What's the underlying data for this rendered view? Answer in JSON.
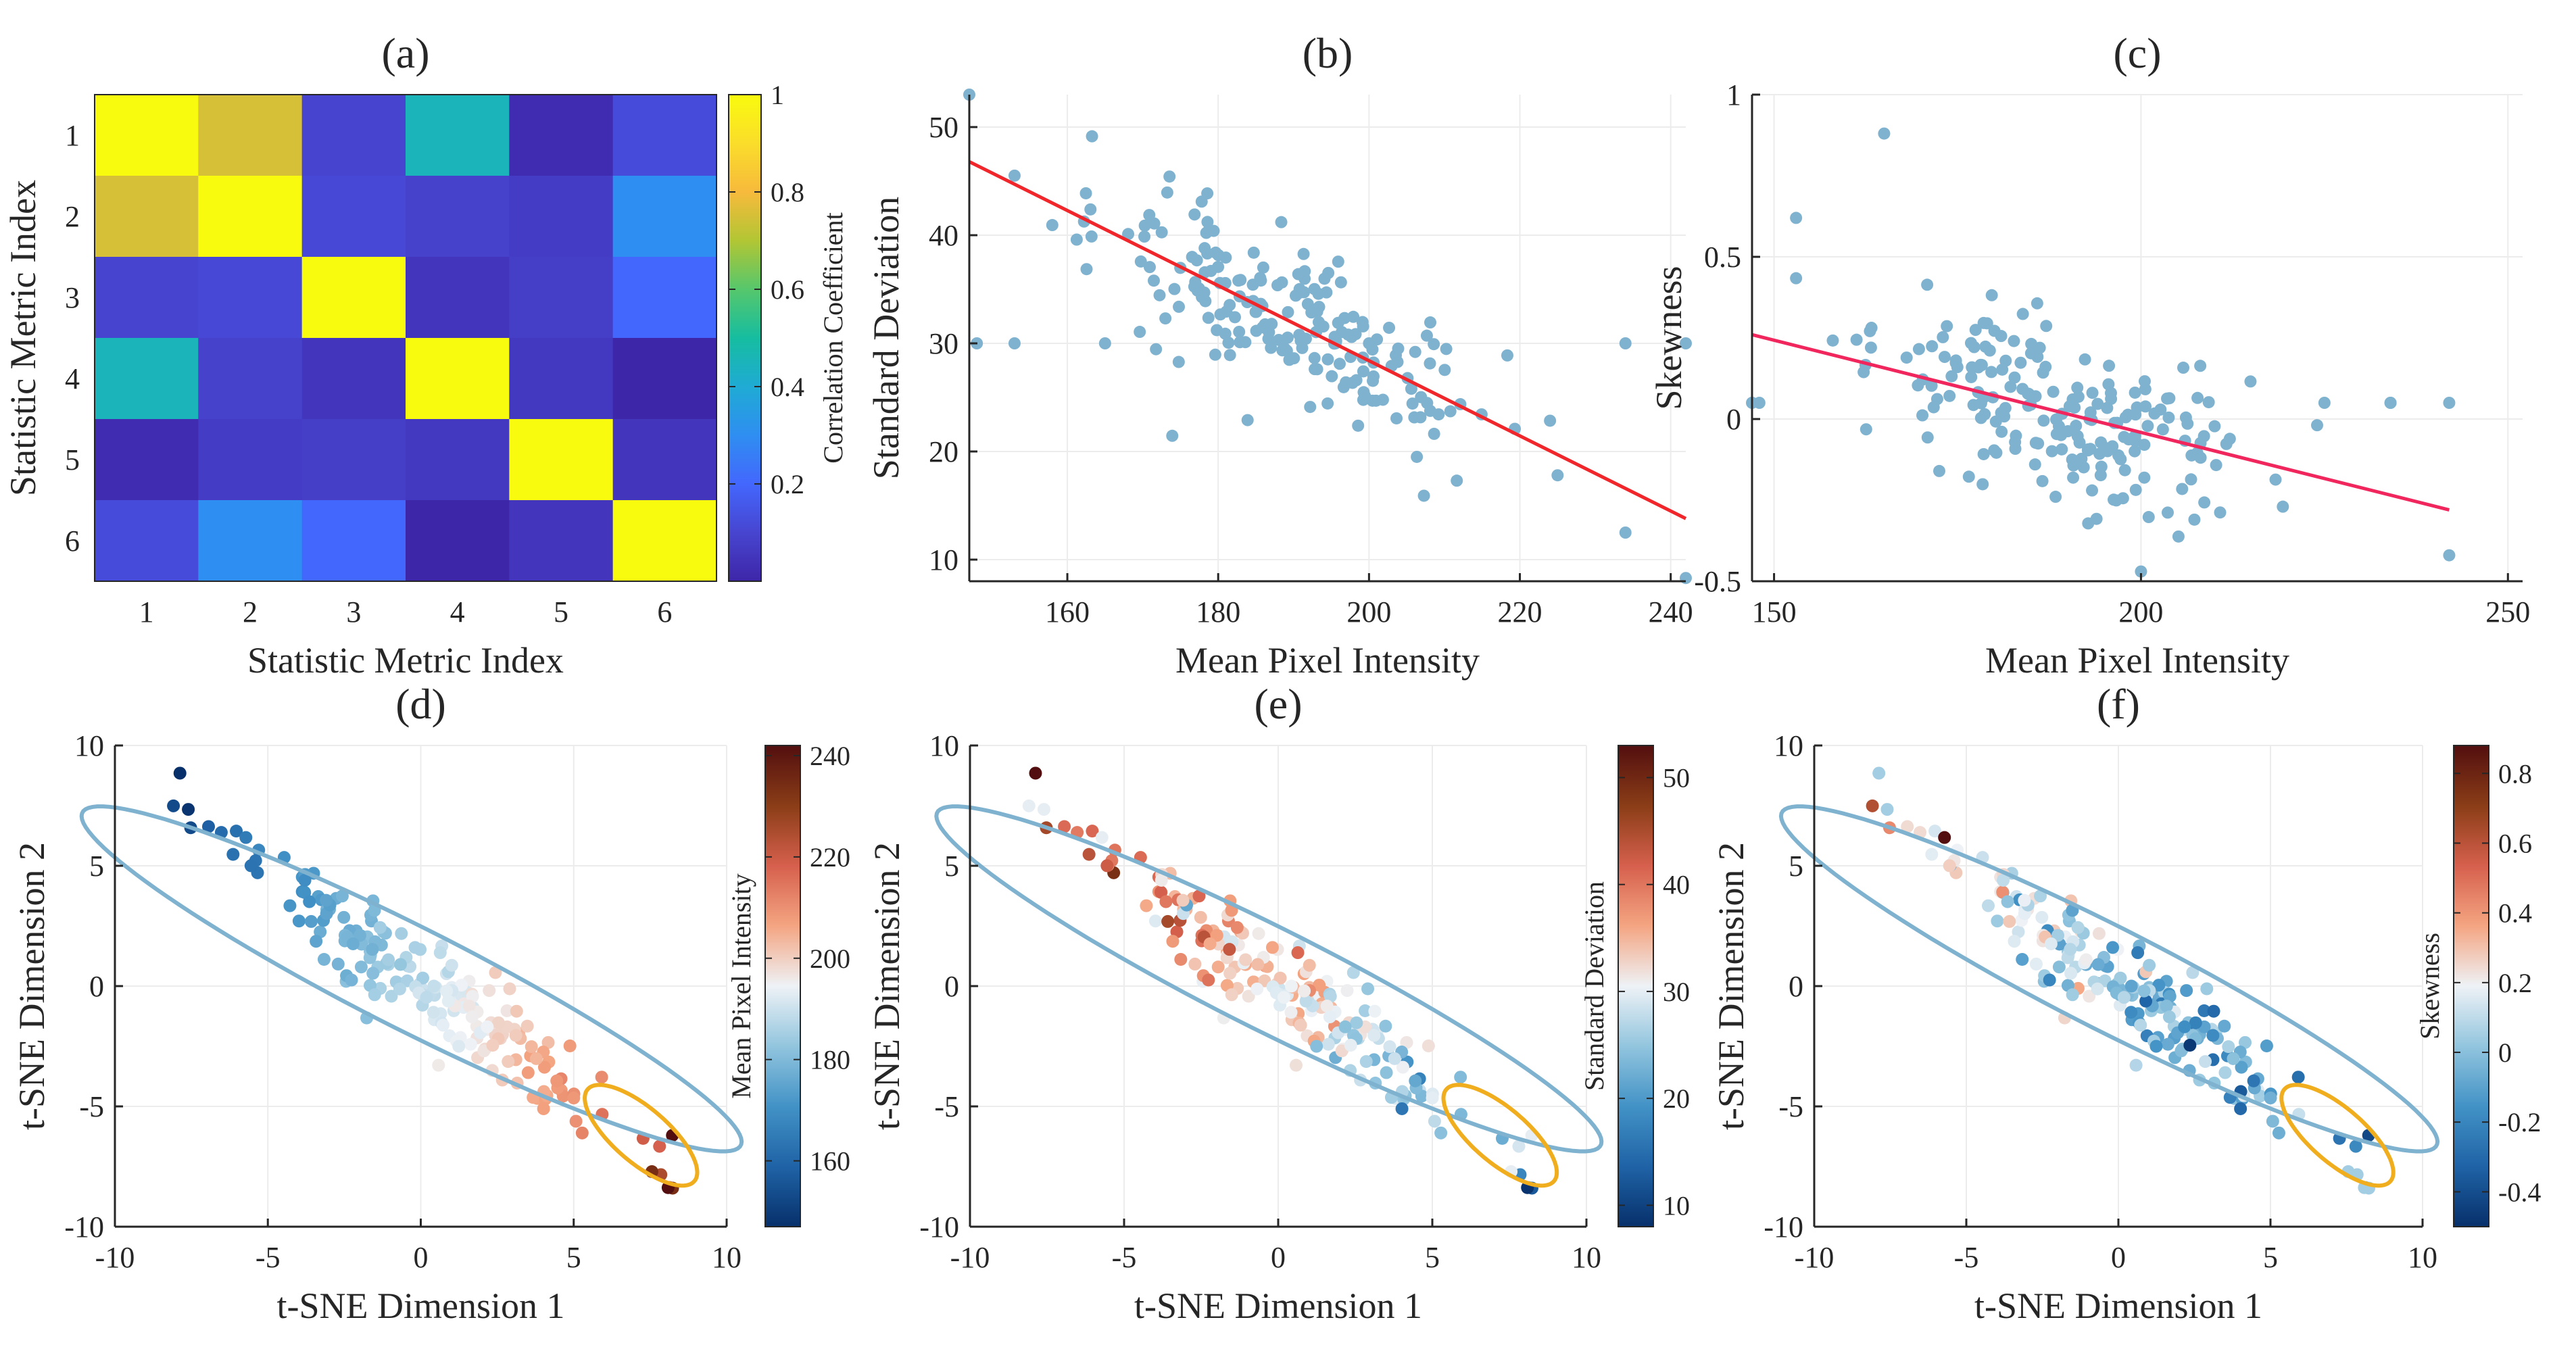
{
  "chart_data": [
    {
      "id": "a",
      "type": "heatmap",
      "title": "(a)",
      "xlabel": "Statistic Metric Index",
      "ylabel": "Statistic Metric Index",
      "categories": [
        "1",
        "2",
        "3",
        "4",
        "5",
        "6"
      ],
      "matrix": [
        [
          1.0,
          0.75,
          0.1,
          0.45,
          0.02,
          0.12
        ],
        [
          0.75,
          1.0,
          0.11,
          0.09,
          0.07,
          0.3
        ],
        [
          0.1,
          0.11,
          1.0,
          0.05,
          0.08,
          0.2
        ],
        [
          0.45,
          0.09,
          0.05,
          1.0,
          0.06,
          0.0
        ],
        [
          0.02,
          0.07,
          0.08,
          0.06,
          1.0,
          0.05
        ],
        [
          0.12,
          0.3,
          0.2,
          0.0,
          0.05,
          1.0
        ]
      ],
      "colorbar": {
        "label": "Correlation Coefficient",
        "range": [
          0,
          1
        ],
        "ticks": [
          "0.2",
          "0.4",
          "0.6",
          "0.8",
          "1"
        ]
      }
    },
    {
      "id": "b",
      "type": "scatter",
      "title": "(b)",
      "xlabel": "Mean Pixel Intensity",
      "ylabel": "Standard Deviation",
      "xlim": [
        147,
        242
      ],
      "ylim": [
        8,
        53
      ],
      "xticks": [
        "160",
        "180",
        "200",
        "220",
        "240"
      ],
      "yticks": [
        "10",
        "20",
        "30",
        "40",
        "50"
      ],
      "fit_line": {
        "x": [
          147,
          242
        ],
        "y": [
          46.8,
          13.8
        ]
      },
      "outliers": [
        [
          147,
          53
        ],
        [
          234,
          12.5
        ],
        [
          242,
          8.3
        ],
        [
          225,
          17.8
        ]
      ],
      "point_color": "#7fb2cf",
      "line_color": "#f0262b"
    },
    {
      "id": "c",
      "type": "scatter",
      "title": "(c)",
      "xlabel": "Mean Pixel Intensity",
      "ylabel": "Skewness",
      "xlim": [
        147,
        252
      ],
      "ylim": [
        -0.5,
        1
      ],
      "xticks": [
        "150",
        "200",
        "250"
      ],
      "yticks": [
        "-0.5",
        "0",
        "0.5",
        "1"
      ],
      "fit_line": {
        "x": [
          147,
          242
        ],
        "y": [
          0.26,
          -0.28
        ]
      },
      "outliers": [
        [
          165,
          0.88
        ],
        [
          153,
          0.62
        ],
        [
          148,
          0.05
        ],
        [
          242,
          -0.42
        ],
        [
          234,
          0.05
        ],
        [
          200,
          -0.47
        ]
      ],
      "point_color": "#7fb2cf",
      "line_color": "#f0265d"
    },
    {
      "id": "d",
      "type": "scatter",
      "title": "(d)",
      "xlabel": "t-SNE Dimension 1",
      "ylabel": "t-SNE Dimension 2",
      "xlim": [
        -10,
        10
      ],
      "ylim": [
        -10,
        10
      ],
      "xticks": [
        "-10",
        "-5",
        "0",
        "5",
        "10"
      ],
      "yticks": [
        "-10",
        "-5",
        "0",
        "5",
        "10"
      ],
      "color_by": "intensity",
      "colorbar": {
        "label": "Mean Pixel Intensity",
        "range": [
          147,
          242
        ],
        "ticks": [
          "160",
          "180",
          "200",
          "220",
          "240"
        ]
      }
    },
    {
      "id": "e",
      "type": "scatter",
      "title": "(e)",
      "xlabel": "t-SNE Dimension 1",
      "ylabel": "t-SNE Dimension 2",
      "xlim": [
        -10,
        10
      ],
      "ylim": [
        -10,
        10
      ],
      "xticks": [
        "-10",
        "-5",
        "0",
        "5",
        "10"
      ],
      "yticks": [
        "-10",
        "-5",
        "0",
        "5",
        "10"
      ],
      "color_by": "std",
      "colorbar": {
        "label": "Standard Deviation",
        "range": [
          8,
          53
        ],
        "ticks": [
          "10",
          "20",
          "30",
          "40",
          "50"
        ]
      }
    },
    {
      "id": "f",
      "type": "scatter",
      "title": "(f)",
      "xlabel": "t-SNE Dimension 1",
      "ylabel": "t-SNE Dimension 2",
      "xlim": [
        -10,
        10
      ],
      "ylim": [
        -10,
        10
      ],
      "xticks": [
        "-10",
        "-5",
        "0",
        "5",
        "10"
      ],
      "yticks": [
        "-10",
        "-5",
        "0",
        "5",
        "10"
      ],
      "color_by": "skew",
      "colorbar": {
        "label": "Skewness",
        "range": [
          -0.5,
          0.88
        ],
        "ticks": [
          "-0.4",
          "-0.2",
          "0",
          "0.2",
          "0.4",
          "0.6",
          "0.8"
        ]
      }
    }
  ],
  "tsne_regions": {
    "main_ellipse": {
      "center": [
        -0.3,
        0.3
      ],
      "semi_axes": [
        12.8,
        2.0
      ],
      "angle_deg": -33,
      "color": "#7fb2cf"
    },
    "cluster_ellipse": {
      "center": [
        7.2,
        -6.2
      ],
      "semi_axes": [
        2.6,
        1.0
      ],
      "angle_deg": -50,
      "color": "#f0ad1e"
    }
  },
  "samples": {
    "count": 200,
    "seed": 7
  },
  "colors": {
    "scatter_blue": "#7fb2cf",
    "parula": [
      "#3e26a8",
      "#4745d0",
      "#4367fd",
      "#2f8ef1",
      "#1fabd4",
      "#16bda0",
      "#56c76c",
      "#b2c634",
      "#f7ba3c",
      "#fadd2a",
      "#f9fb0e"
    ],
    "rdbu": [
      "#07306b",
      "#1f63a6",
      "#4292c6",
      "#92c5de",
      "#eef2f6",
      "#f4a582",
      "#d6604d",
      "#8a3d17",
      "#530f0f"
    ]
  }
}
